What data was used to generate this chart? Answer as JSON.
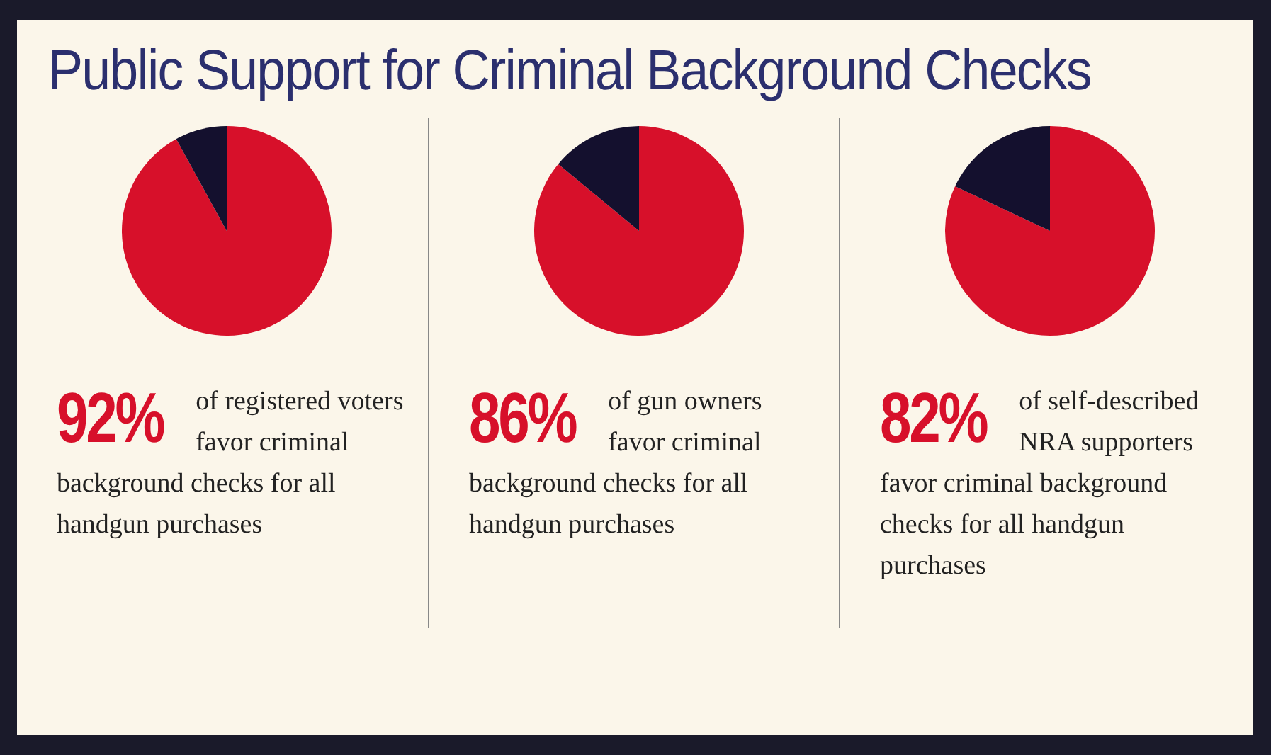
{
  "chart_data": [
    {
      "type": "pie",
      "title": "Public Support for Criminal Background Checks",
      "categories": [
        null,
        null
      ],
      "values": [
        92,
        8
      ],
      "colors": [
        "#d7102a",
        "#14102e"
      ],
      "value_labels": [
        "92%",
        null
      ],
      "annotations": [
        "of registered voters favor criminal background checks for all handgun purchases"
      ],
      "legend": false
    },
    {
      "type": "pie",
      "categories": [
        null,
        null
      ],
      "values": [
        86,
        14
      ],
      "colors": [
        "#d7102a",
        "#14102e"
      ],
      "value_labels": [
        "86%",
        null
      ],
      "annotations": [
        "of gun owners favor criminal background checks for all handgun purchases"
      ],
      "legend": false
    },
    {
      "type": "pie",
      "categories": [
        null,
        null
      ],
      "values": [
        82,
        18
      ],
      "colors": [
        "#d7102a",
        "#14102e"
      ],
      "value_labels": [
        "82%",
        null
      ],
      "annotations": [
        "of self-described NRA supporters favor criminal background checks for all handgun purchases"
      ],
      "legend": false
    }
  ]
}
